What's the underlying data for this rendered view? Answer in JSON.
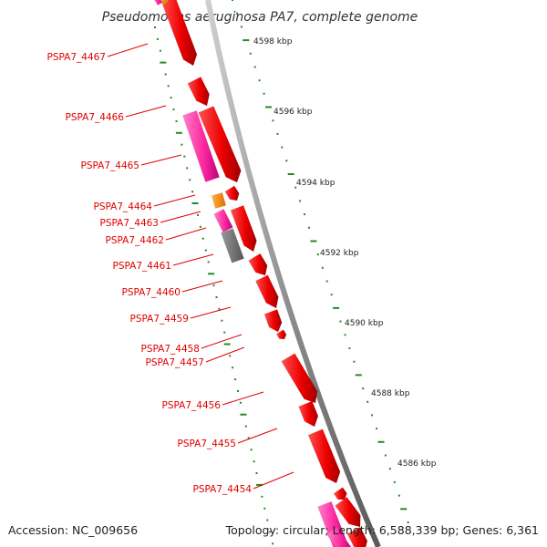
{
  "header": {
    "title": "Pseudomonas aeruginosa PA7, complete genome"
  },
  "footer": {
    "accession": "Accession: NC_009656",
    "summary": "Topology: circular; Length: 6,588,339 bp; Genes: 6,361"
  },
  "scale": {
    "ticks": [
      "4598 kbp",
      "4596 kbp",
      "4594 kbp",
      "4592 kbp",
      "4590 kbp",
      "4588 kbp",
      "4586 kbp"
    ]
  },
  "genes": [
    {
      "label": "PSPA7_4467"
    },
    {
      "label": "PSPA7_4466"
    },
    {
      "label": "PSPA7_4465"
    },
    {
      "label": "PSPA7_4464"
    },
    {
      "label": "PSPA7_4463"
    },
    {
      "label": "PSPA7_4462"
    },
    {
      "label": "PSPA7_4461"
    },
    {
      "label": "PSPA7_4460"
    },
    {
      "label": "PSPA7_4459"
    },
    {
      "label": "PSPA7_4458"
    },
    {
      "label": "PSPA7_4457"
    },
    {
      "label": "PSPA7_4456"
    },
    {
      "label": "PSPA7_4455"
    },
    {
      "label": "PSPA7_4454"
    }
  ],
  "colors": {
    "forward_gene": "#ff0000",
    "reverse_gene": "#ff33aa",
    "orange_feature": "#ff8c00",
    "gray_feature": "#777777",
    "backbone": "#888888",
    "tick": "#228b22",
    "label": "#e00000"
  }
}
